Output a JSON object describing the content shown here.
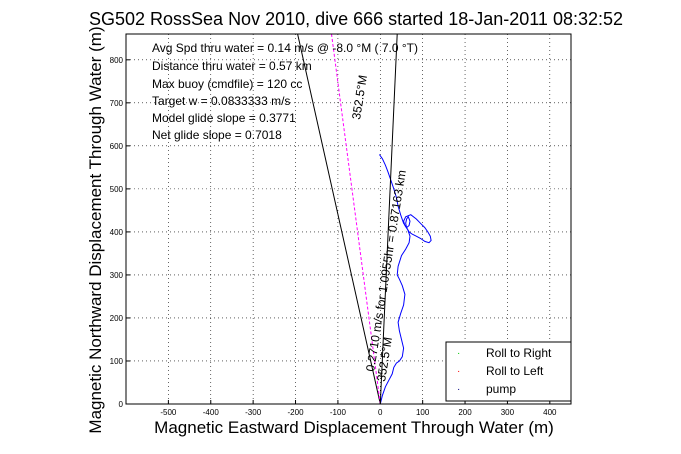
{
  "chart_data": {
    "type": "line",
    "title": "SG502 RossSea Nov 2010, dive 666 started 18-Jan-2011 08:32:52",
    "xlabel": "Magnetic Eastward Displacement Through Water (m)",
    "ylabel": "Magnetic Northward Displacement Through Water (m)",
    "xlim": [
      -600,
      450
    ],
    "ylim": [
      0,
      860
    ],
    "xticks": [
      -500,
      -400,
      -300,
      -200,
      -100,
      0,
      100,
      200,
      300,
      400
    ],
    "yticks": [
      0,
      100,
      200,
      300,
      400,
      500,
      600,
      700,
      800
    ],
    "grid": true,
    "legend_position": "bottom-right",
    "annotations": [
      "Avg Spd thru water = 0.14 m/s @  -8.0  °M (  7.0 °T)",
      "Distance thru water = 0.57 km",
      "Max buoy (cmdfile) = 120 cc",
      "Target w = 0.0833333 m/s",
      "Model glide slope = 0.3771",
      "Net glide slope = 0.7018"
    ],
    "rotated_labels": {
      "upper_heading": "352.5°M",
      "course_speed": "0.2710 m/s for 1.0955hr = 0.87163 km",
      "lower_heading": "352.5°M"
    },
    "legend": [
      {
        "label": "Roll to Right",
        "color": "#00cc00"
      },
      {
        "label": "Roll to Left",
        "color": "#ff0000"
      },
      {
        "label": "pump",
        "color": "#000080"
      }
    ],
    "series": [
      {
        "color": "#0000ff",
        "x": [
          0,
          5,
          12,
          20,
          28,
          32,
          38,
          45,
          52,
          55,
          50,
          45,
          42,
          48,
          55,
          58,
          52,
          45,
          40,
          42,
          50,
          60,
          68,
          70,
          65,
          58,
          55,
          60,
          72,
          85,
          95,
          105,
          112,
          118,
          120,
          115,
          105,
          95,
          85,
          75,
          68,
          62,
          60,
          62,
          66,
          70,
          68,
          62,
          55,
          48,
          42,
          38,
          32,
          25,
          18,
          12,
          5,
          -2
        ],
        "y": [
          0,
          20,
          40,
          55,
          70,
          85,
          95,
          100,
          110,
          130,
          150,
          170,
          190,
          210,
          230,
          255,
          275,
          290,
          300,
          320,
          345,
          360,
          375,
          390,
          405,
          415,
          425,
          435,
          440,
          430,
          420,
          410,
          400,
          390,
          380,
          375,
          378,
          385,
          390,
          395,
          400,
          410,
          420,
          430,
          435,
          425,
          415,
          410,
          420,
          440,
          460,
          480,
          500,
          520,
          540,
          555,
          570,
          580
        ]
      },
      {
        "color": "#000000",
        "x": [
          -195,
          0,
          40
        ],
        "y": [
          860,
          0,
          860
        ]
      },
      {
        "color": "#ff00ff",
        "dashed": true,
        "x": [
          -115,
          0
        ],
        "y": [
          860,
          0
        ]
      }
    ]
  }
}
